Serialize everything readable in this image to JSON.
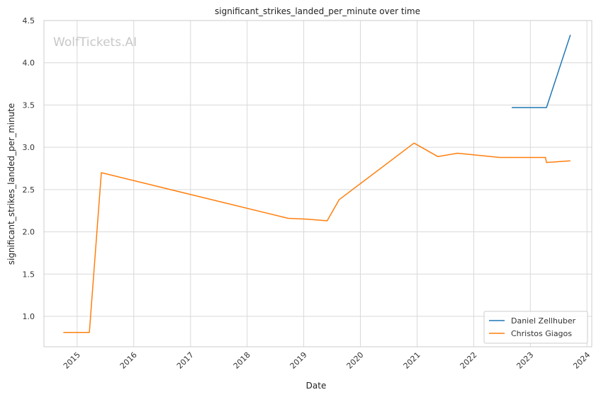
{
  "chart_data": {
    "type": "line",
    "title": "significant_strikes_landed_per_minute over time",
    "xlabel": "Date",
    "ylabel": "significant_strikes_landed_per_minute",
    "watermark": "WolfTickets.AI",
    "xlim": [
      "2014-06-01",
      "2024-02-01"
    ],
    "ylim": [
      0.64,
      4.5
    ],
    "x_ticks": [
      "2015",
      "2016",
      "2017",
      "2018",
      "2019",
      "2020",
      "2021",
      "2022",
      "2023",
      "2024"
    ],
    "y_ticks": [
      "1.0",
      "1.5",
      "2.0",
      "2.5",
      "3.0",
      "3.5",
      "4.0",
      "4.5"
    ],
    "grid": true,
    "legend_position": "bottom-right",
    "series": [
      {
        "name": "Daniel Zellhuber",
        "color": "#1f77b4",
        "points": [
          [
            "2022-09-03",
            3.47
          ],
          [
            "2023-04-15",
            3.47
          ],
          [
            "2023-09-16",
            4.33
          ]
        ]
      },
      {
        "name": "Christos Giagos",
        "color": "#ff7f0e",
        "points": [
          [
            "2014-10-04",
            0.81
          ],
          [
            "2015-03-21",
            0.81
          ],
          [
            "2015-06-06",
            2.7
          ],
          [
            "2018-09-22",
            2.16
          ],
          [
            "2019-01-26",
            2.15
          ],
          [
            "2019-06-01",
            2.13
          ],
          [
            "2019-08-17",
            2.38
          ],
          [
            "2020-12-12",
            3.05
          ],
          [
            "2021-05-15",
            2.89
          ],
          [
            "2021-09-18",
            2.93
          ],
          [
            "2022-06-18",
            2.88
          ],
          [
            "2023-04-08",
            2.88
          ],
          [
            "2023-04-15",
            2.82
          ],
          [
            "2023-09-16",
            2.84
          ]
        ]
      }
    ]
  }
}
